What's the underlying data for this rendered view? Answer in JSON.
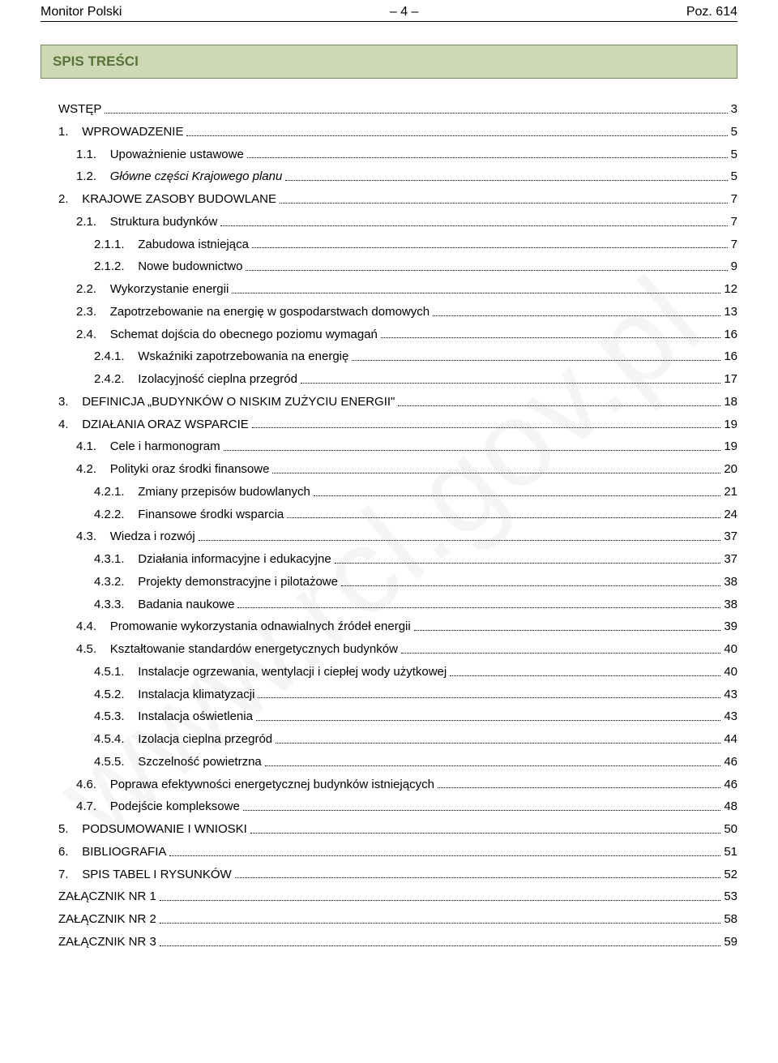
{
  "header": {
    "left": "Monitor Polski",
    "center": "– 4 –",
    "right": "Poz. 614"
  },
  "toc_title": "SPIS TREŚCI",
  "watermark": "www.rcl.gov.pl",
  "colors": {
    "toc_box_bg": "#ced8b4",
    "toc_box_border": "#6e8a5a",
    "toc_title_color": "#577339",
    "text": "#000000",
    "watermark": "rgba(0,0,0,0.04)"
  },
  "toc": [
    {
      "indent": 1,
      "num": "",
      "label": "WSTĘP",
      "page": "3",
      "italic": false
    },
    {
      "indent": 1,
      "num": "1.",
      "label": "WPROWADZENIE",
      "page": "5",
      "italic": false
    },
    {
      "indent": 2,
      "num": "1.1.",
      "label": "Upoważnienie ustawowe",
      "page": "5",
      "italic": false
    },
    {
      "indent": 2,
      "num": "1.2.",
      "label": "Główne części Krajowego planu",
      "page": "5",
      "italic": true
    },
    {
      "indent": 1,
      "num": "2.",
      "label": "KRAJOWE ZASOBY BUDOWLANE",
      "page": "7",
      "italic": false
    },
    {
      "indent": 2,
      "num": "2.1.",
      "label": "Struktura budynków",
      "page": "7",
      "italic": false
    },
    {
      "indent": 3,
      "num": "2.1.1.",
      "label": "Zabudowa istniejąca",
      "page": "7",
      "italic": false
    },
    {
      "indent": 3,
      "num": "2.1.2.",
      "label": "Nowe budownictwo",
      "page": "9",
      "italic": false
    },
    {
      "indent": 2,
      "num": "2.2.",
      "label": "Wykorzystanie energii",
      "page": "12",
      "italic": false
    },
    {
      "indent": 2,
      "num": "2.3.",
      "label": "Zapotrzebowanie na energię w gospodarstwach domowych",
      "page": "13",
      "italic": false
    },
    {
      "indent": 2,
      "num": "2.4.",
      "label": "Schemat dojścia do obecnego poziomu wymagań",
      "page": "16",
      "italic": false
    },
    {
      "indent": 3,
      "num": "2.4.1.",
      "label": "Wskaźniki zapotrzebowania na energię",
      "page": "16",
      "italic": false
    },
    {
      "indent": 3,
      "num": "2.4.2.",
      "label": "Izolacyjność cieplna przegród",
      "page": "17",
      "italic": false
    },
    {
      "indent": 1,
      "num": "3.",
      "label": "DEFINICJA „BUDYNKÓW O NISKIM ZUŻYCIU ENERGII\"",
      "page": "18",
      "italic": false
    },
    {
      "indent": 1,
      "num": "4.",
      "label": "DZIAŁANIA ORAZ WSPARCIE",
      "page": "19",
      "italic": false
    },
    {
      "indent": 2,
      "num": "4.1.",
      "label": "Cele i harmonogram",
      "page": "19",
      "italic": false
    },
    {
      "indent": 2,
      "num": "4.2.",
      "label": "Polityki oraz środki finansowe",
      "page": "20",
      "italic": false
    },
    {
      "indent": 3,
      "num": "4.2.1.",
      "label": "Zmiany przepisów budowlanych",
      "page": "21",
      "italic": false
    },
    {
      "indent": 3,
      "num": "4.2.2.",
      "label": "Finansowe środki wsparcia",
      "page": "24",
      "italic": false
    },
    {
      "indent": 2,
      "num": "4.3.",
      "label": "Wiedza i rozwój",
      "page": "37",
      "italic": false
    },
    {
      "indent": 3,
      "num": "4.3.1.",
      "label": "Działania informacyjne i edukacyjne",
      "page": "37",
      "italic": false
    },
    {
      "indent": 3,
      "num": "4.3.2.",
      "label": "Projekty demonstracyjne i pilotażowe",
      "page": "38",
      "italic": false
    },
    {
      "indent": 3,
      "num": "4.3.3.",
      "label": "Badania naukowe",
      "page": "38",
      "italic": false
    },
    {
      "indent": 2,
      "num": "4.4.",
      "label": "Promowanie wykorzystania odnawialnych źródeł energii",
      "page": "39",
      "italic": false
    },
    {
      "indent": 2,
      "num": "4.5.",
      "label": "Kształtowanie standardów energetycznych budynków",
      "page": "40",
      "italic": false
    },
    {
      "indent": 3,
      "num": "4.5.1.",
      "label": "Instalacje ogrzewania, wentylacji i ciepłej wody użytkowej",
      "page": "40",
      "italic": false
    },
    {
      "indent": 3,
      "num": "4.5.2.",
      "label": "Instalacja klimatyzacji",
      "page": "43",
      "italic": false
    },
    {
      "indent": 3,
      "num": "4.5.3.",
      "label": "Instalacja oświetlenia",
      "page": "43",
      "italic": false
    },
    {
      "indent": 3,
      "num": "4.5.4.",
      "label": "Izolacja cieplna przegród ",
      "page": "44",
      "italic": false
    },
    {
      "indent": 3,
      "num": "4.5.5.",
      "label": "Szczelność powietrzna",
      "page": "46",
      "italic": false
    },
    {
      "indent": 2,
      "num": "4.6.",
      "label": "Poprawa efektywności energetycznej budynków istniejących",
      "page": "46",
      "italic": false
    },
    {
      "indent": 2,
      "num": "4.7.",
      "label": "Podejście kompleksowe",
      "page": "48",
      "italic": false
    },
    {
      "indent": 1,
      "num": "5.",
      "label": "PODSUMOWANIE I WNIOSKI",
      "page": "50",
      "italic": false
    },
    {
      "indent": 1,
      "num": "6.",
      "label": "BIBLIOGRAFIA",
      "page": "51",
      "italic": false
    },
    {
      "indent": 1,
      "num": "7.",
      "label": "SPIS TABEL I RYSUNKÓW",
      "page": "52",
      "italic": false
    },
    {
      "indent": 1,
      "num": "",
      "label": "ZAŁĄCZNIK NR 1",
      "page": "53",
      "italic": false
    },
    {
      "indent": 1,
      "num": "",
      "label": "ZAŁĄCZNIK NR 2",
      "page": "58",
      "italic": false
    },
    {
      "indent": 1,
      "num": "",
      "label": "ZAŁĄCZNIK NR 3",
      "page": "59",
      "italic": false
    }
  ]
}
